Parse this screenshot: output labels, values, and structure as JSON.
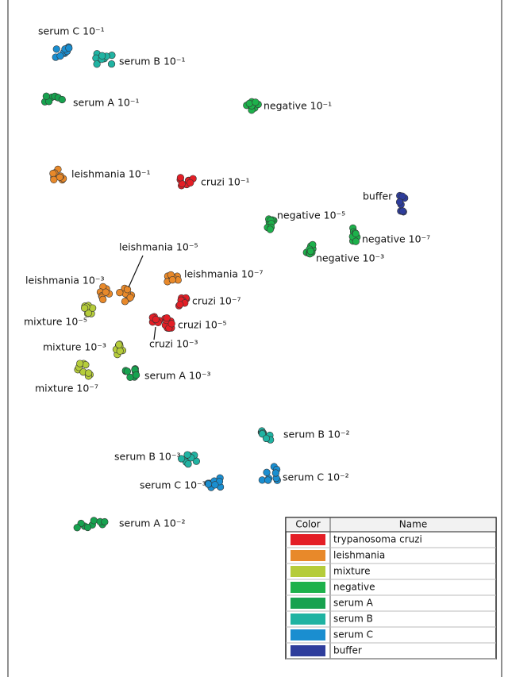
{
  "clusters": [
    {
      "label": "serum C 10⁻¹"
    },
    {
      "label": "serum B 10⁻¹"
    },
    {
      "label": "serum A 10⁻¹"
    },
    {
      "label": "negative 10⁻¹"
    },
    {
      "label": "leishmania 10⁻¹"
    },
    {
      "label": "cruzi 10⁻¹"
    },
    {
      "label": "buffer"
    },
    {
      "label": "negative 10⁻⁵"
    },
    {
      "label": "negative 10⁻⁷"
    },
    {
      "label": "negative 10⁻³"
    },
    {
      "label": "leishmania 10⁻⁵"
    },
    {
      "label": "leishmania 10⁻³"
    },
    {
      "label": "leishmania 10⁻⁷"
    },
    {
      "label": "cruzi 10⁻⁷"
    },
    {
      "label": "cruzi 10⁻⁵"
    },
    {
      "label": "cruzi 10⁻³"
    },
    {
      "label": "mixture 10⁻⁵"
    },
    {
      "label": "mixture 10⁻³"
    },
    {
      "label": "mixture 10⁻⁷"
    },
    {
      "label": "serum A 10⁻³"
    },
    {
      "label": "serum B 10⁻²"
    },
    {
      "label": "serum B 10⁻³"
    },
    {
      "label": "serum C 10⁻³"
    },
    {
      "label": "serum C 10⁻²"
    },
    {
      "label": "serum A 10⁻²"
    }
  ],
  "legend": {
    "headers": [
      "Color",
      "Name"
    ],
    "rows": [
      {
        "color": "#e41e26",
        "name": "trypanosoma cruzi"
      },
      {
        "color": "#e8892a",
        "name": "leishmania"
      },
      {
        "color": "#b5cc3a",
        "name": "mixture"
      },
      {
        "color": "#1db14b",
        "name": "negative"
      },
      {
        "color": "#17a24f",
        "name": "serum A"
      },
      {
        "color": "#20b3a2",
        "name": "serum B"
      },
      {
        "color": "#1a8ed0",
        "name": "serum C"
      },
      {
        "color": "#2e3d9c",
        "name": "buffer"
      }
    ]
  }
}
